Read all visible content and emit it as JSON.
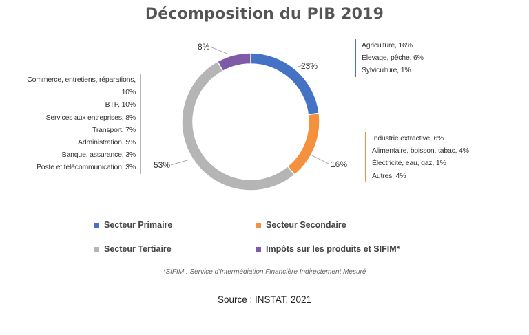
{
  "title": "Décomposition du PIB 2019",
  "chart_data": {
    "type": "pie",
    "title": "Décomposition du PIB 2019",
    "series": [
      {
        "name": "Secteur Primaire",
        "value": 23,
        "label": "23%",
        "color": "#4472C4",
        "details": [
          "Agriculture, 16%",
          "Élevage, pêche, 6%",
          "Sylviculture, 1%"
        ]
      },
      {
        "name": "Secteur Secondaire",
        "value": 16,
        "label": "16%",
        "color": "#F4913C",
        "details": [
          "Industrie extractive, 6%",
          "Alimentaire, boisson, tabac, 4%",
          "Électricité, eau, gaz, 1%",
          "Autres, 4%"
        ]
      },
      {
        "name": "Secteur Tertiaire",
        "value": 53,
        "label": "53%",
        "color": "#B5B5B5",
        "details": [
          "Commerce, entretiens, réparations,",
          "10%",
          "BTP, 10%",
          "Services aux entreprises, 8%",
          "Transport, 7%",
          "Administration, 5%",
          "Banque, assurance, 3%",
          "Poste et télécommunication, 3%"
        ]
      },
      {
        "name": "Impôts sur les produits et SIFIM*",
        "value": 8,
        "label": "8%",
        "color": "#7E5AA8",
        "details": []
      }
    ],
    "legend_position": "bottom"
  },
  "legend": [
    {
      "label": "Secteur Primaire",
      "color": "#4472C4"
    },
    {
      "label": "Secteur Secondaire",
      "color": "#F4913C"
    },
    {
      "label": "Secteur Tertiaire",
      "color": "#B5B5B5"
    },
    {
      "label": "Impôts sur les produits et SIFIM*",
      "color": "#7E5AA8"
    }
  ],
  "footnote": "*SIFIM : Service d'Intermédiation Financière Indirectement Mesuré",
  "source": "Source : INSTAT, 2021"
}
